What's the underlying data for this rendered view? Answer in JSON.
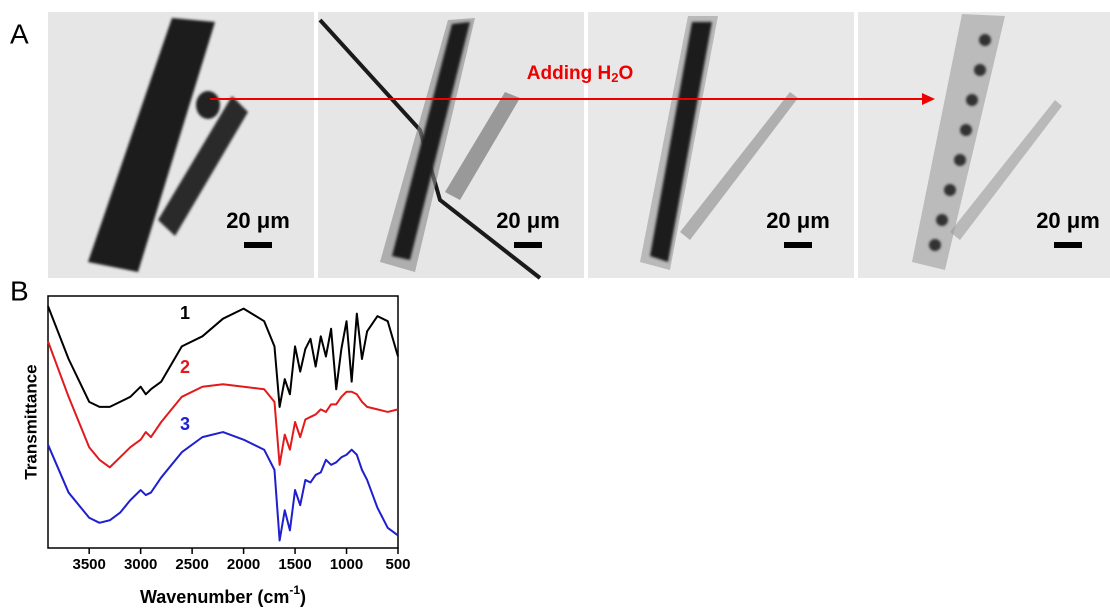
{
  "panel_a": {
    "label": "A",
    "images": [
      {
        "scale_label": "20 μm"
      },
      {
        "scale_label": "20 μm"
      },
      {
        "scale_label": "20 μm"
      },
      {
        "scale_label": "20 μm"
      }
    ],
    "arrow_label": {
      "text": "Adding H",
      "sub": "2",
      "after": "O"
    }
  },
  "chart_data": {
    "type": "line",
    "panel_label": "B",
    "x_label": {
      "text": "Wavenumber (cm",
      "sup": "-1",
      "after": ")"
    },
    "y_label": "Transmittance",
    "x": [
      3900,
      3700,
      3500,
      3400,
      3300,
      3200,
      3100,
      3000,
      2950,
      2900,
      2800,
      2600,
      2400,
      2200,
      2000,
      1800,
      1700,
      1650,
      1600,
      1550,
      1500,
      1450,
      1400,
      1350,
      1300,
      1250,
      1200,
      1150,
      1100,
      1050,
      1000,
      950,
      900,
      850,
      800,
      700,
      600,
      500
    ],
    "xlim": [
      3900,
      500
    ],
    "xticks": [
      3500,
      3000,
      2500,
      2000,
      1500,
      1000,
      500
    ],
    "ylim": [
      0,
      100
    ],
    "series": [
      {
        "name": "1",
        "color": "#000000",
        "values": [
          96,
          75,
          58,
          56,
          56,
          58,
          60,
          64,
          61,
          63,
          66,
          80,
          84,
          91,
          95,
          90,
          80,
          56,
          67,
          61,
          80,
          70,
          79,
          83,
          72,
          84,
          76,
          87,
          63,
          79,
          90,
          66,
          93,
          75,
          86,
          92,
          90,
          76
        ]
      },
      {
        "name": "2",
        "color": "#e31a1c",
        "values": [
          82,
          60,
          40,
          35,
          32,
          36,
          40,
          43,
          46,
          44,
          50,
          60,
          64,
          65,
          64,
          63,
          58,
          33,
          45,
          39,
          50,
          44,
          51,
          52,
          53,
          55,
          54,
          57,
          57,
          60,
          62,
          62,
          61,
          58,
          56,
          55,
          54,
          55
        ]
      },
      {
        "name": "3",
        "color": "#1f1fd0",
        "values": [
          41,
          22,
          12,
          10,
          11,
          14,
          19,
          23,
          21,
          22,
          28,
          38,
          44,
          46,
          43,
          39,
          31,
          3,
          15,
          7,
          23,
          17,
          27,
          26,
          29,
          30,
          35,
          33,
          34,
          36,
          37,
          39,
          37,
          31,
          27,
          16,
          8,
          5
        ]
      }
    ]
  }
}
